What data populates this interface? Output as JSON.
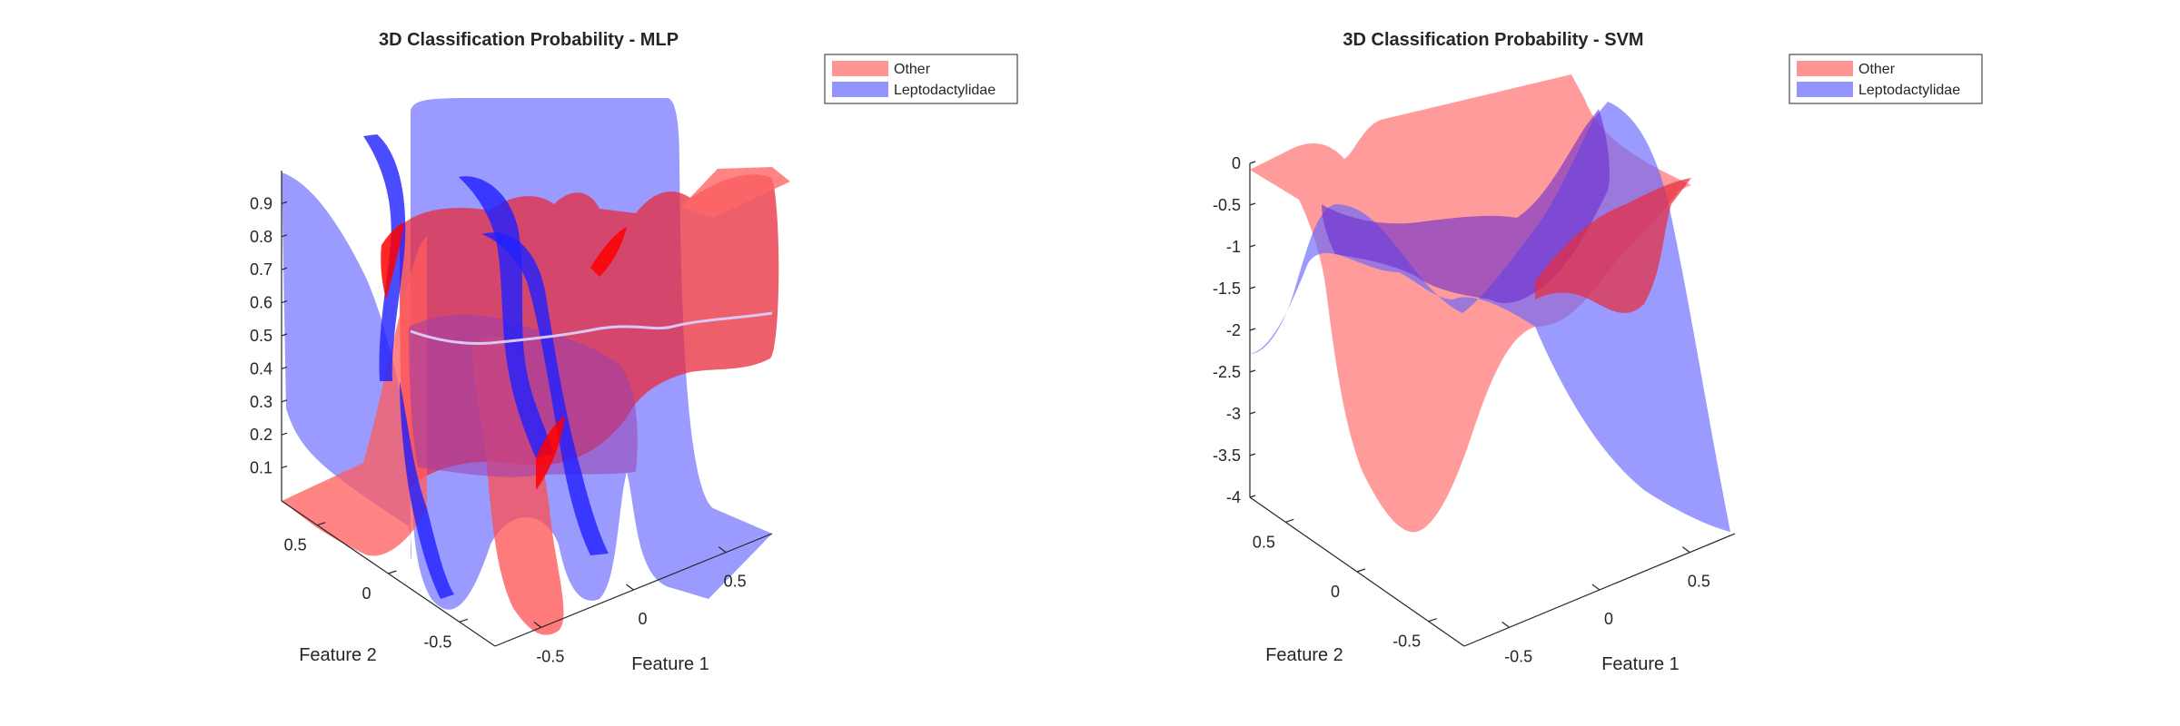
{
  "chart_data": [
    {
      "type": "surface",
      "title": "3D Classification Probability - MLP",
      "xlabel": "Feature 1",
      "ylabel": "Feature 2",
      "zlabel": "",
      "xticks": [
        "-0.5",
        "0",
        "0.5"
      ],
      "yticks": [
        "-0.5",
        "0",
        "0.5"
      ],
      "zticks": [
        "0.1",
        "0.2",
        "0.3",
        "0.4",
        "0.5",
        "0.6",
        "0.7",
        "0.8",
        "0.9"
      ],
      "xlim": [
        -0.75,
        0.75
      ],
      "ylim": [
        -0.75,
        0.75
      ],
      "zlim": [
        0,
        1
      ],
      "grid": false,
      "legend_position": "top-right",
      "series": [
        {
          "name": "Other",
          "color": "#ff6666"
        },
        {
          "name": "Leptodactylidae",
          "color": "#6666ff"
        }
      ]
    },
    {
      "type": "surface",
      "title": "3D Classification Probability - SVM",
      "xlabel": "Feature 1",
      "ylabel": "Feature 2",
      "zlabel": "",
      "xticks": [
        "-0.5",
        "0",
        "0.5"
      ],
      "yticks": [
        "-0.5",
        "0",
        "0.5"
      ],
      "zticks": [
        "-4",
        "-3.5",
        "-3",
        "-2.5",
        "-2",
        "-1.5",
        "-1",
        "-0.5",
        "0"
      ],
      "xlim": [
        -0.75,
        0.75
      ],
      "ylim": [
        -0.75,
        0.75
      ],
      "zlim": [
        -4,
        0
      ],
      "grid": false,
      "legend_position": "top-right",
      "series": [
        {
          "name": "Other",
          "color": "#ff6666"
        },
        {
          "name": "Leptodactylidae",
          "color": "#6666ff"
        }
      ]
    }
  ]
}
